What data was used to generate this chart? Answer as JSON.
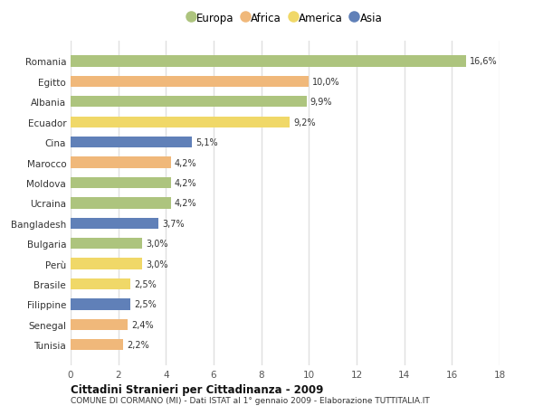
{
  "countries": [
    "Romania",
    "Egitto",
    "Albania",
    "Ecuador",
    "Cina",
    "Marocco",
    "Moldova",
    "Ucraina",
    "Bangladesh",
    "Bulgaria",
    "Perù",
    "Brasile",
    "Filippine",
    "Senegal",
    "Tunisia"
  ],
  "values": [
    16.6,
    10.0,
    9.9,
    9.2,
    5.1,
    4.2,
    4.2,
    4.2,
    3.7,
    3.0,
    3.0,
    2.5,
    2.5,
    2.4,
    2.2
  ],
  "labels": [
    "16,6%",
    "10,0%",
    "9,9%",
    "9,2%",
    "5,1%",
    "4,2%",
    "4,2%",
    "4,2%",
    "3,7%",
    "3,0%",
    "3,0%",
    "2,5%",
    "2,5%",
    "2,4%",
    "2,2%"
  ],
  "continents": [
    "Europa",
    "Africa",
    "Europa",
    "America",
    "Asia",
    "Africa",
    "Europa",
    "Europa",
    "Asia",
    "Europa",
    "America",
    "America",
    "Asia",
    "Africa",
    "Africa"
  ],
  "continent_colors": {
    "Europa": "#adc47e",
    "Africa": "#f0b87a",
    "America": "#f0d868",
    "Asia": "#6080b8"
  },
  "legend_order": [
    "Europa",
    "Africa",
    "America",
    "Asia"
  ],
  "title_main": "Cittadini Stranieri per Cittadinanza - 2009",
  "title_sub": "COMUNE DI CORMANO (MI) - Dati ISTAT al 1° gennaio 2009 - Elaborazione TUTTITALIA.IT",
  "xlim": [
    0,
    18
  ],
  "xticks": [
    0,
    2,
    4,
    6,
    8,
    10,
    12,
    14,
    16,
    18
  ],
  "background_color": "#ffffff",
  "grid_color": "#e0e0e0",
  "bar_height": 0.55
}
